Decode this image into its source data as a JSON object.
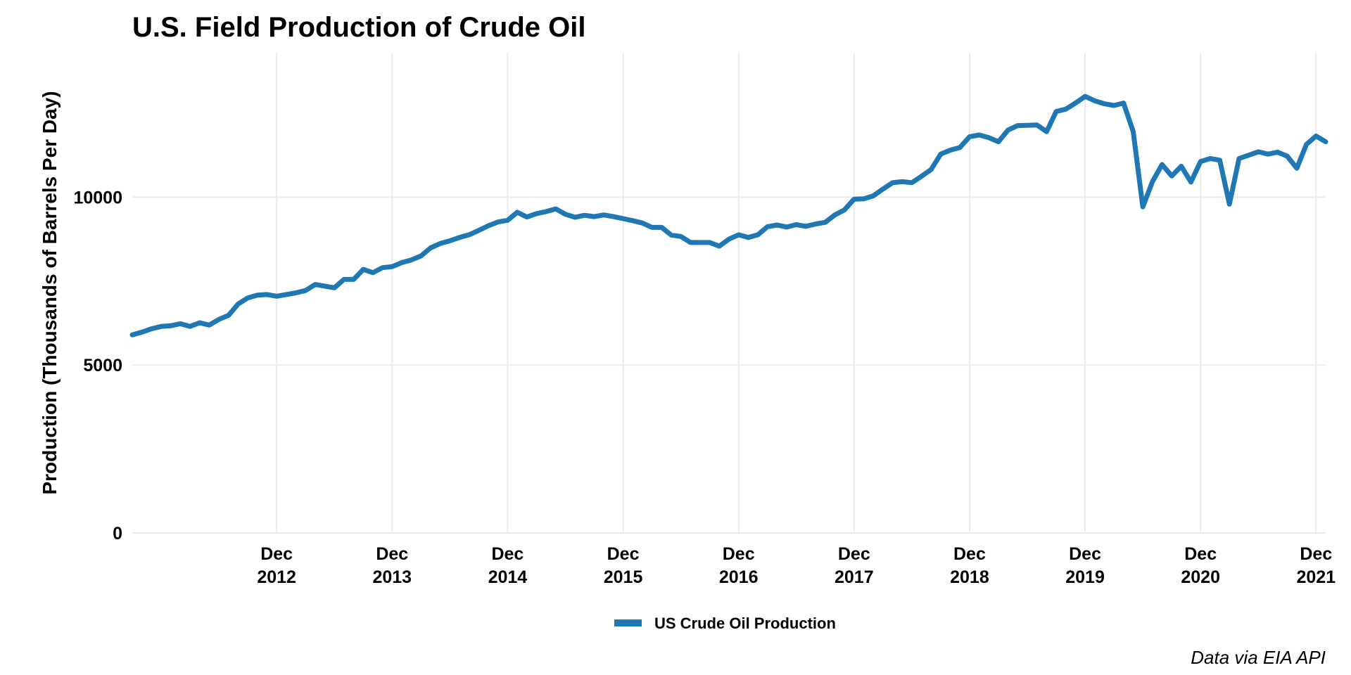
{
  "chart_data": {
    "type": "line",
    "title": "U.S. Field Production of Crude Oil",
    "xlabel": "",
    "ylabel": "Production (Thousands of Barrels Per Day)",
    "caption": "Data via EIA API",
    "ylim": [
      0,
      14300
    ],
    "xlim": [
      "2011-09",
      "2022-01"
    ],
    "yticks": [
      0,
      5000,
      10000
    ],
    "ytick_labels": [
      "0",
      "5000",
      "10000"
    ],
    "xticks": [
      {
        "date": "2012-12",
        "month_label": "Dec",
        "year_label": "2012"
      },
      {
        "date": "2013-12",
        "month_label": "Dec",
        "year_label": "2013"
      },
      {
        "date": "2014-12",
        "month_label": "Dec",
        "year_label": "2014"
      },
      {
        "date": "2015-12",
        "month_label": "Dec",
        "year_label": "2015"
      },
      {
        "date": "2016-12",
        "month_label": "Dec",
        "year_label": "2016"
      },
      {
        "date": "2017-12",
        "month_label": "Dec",
        "year_label": "2017"
      },
      {
        "date": "2018-12",
        "month_label": "Dec",
        "year_label": "2018"
      },
      {
        "date": "2019-12",
        "month_label": "Dec",
        "year_label": "2019"
      },
      {
        "date": "2020-12",
        "month_label": "Dec",
        "year_label": "2020"
      },
      {
        "date": "2021-12",
        "month_label": "Dec",
        "year_label": "2021"
      }
    ],
    "grid": true,
    "legend_position": "bottom",
    "series": [
      {
        "name": "US Crude Oil Production",
        "color": "#1f77b4",
        "x": [
          "2011-09",
          "2011-10",
          "2011-11",
          "2011-12",
          "2012-01",
          "2012-02",
          "2012-03",
          "2012-04",
          "2012-05",
          "2012-06",
          "2012-07",
          "2012-08",
          "2012-09",
          "2012-10",
          "2012-11",
          "2012-12",
          "2013-01",
          "2013-02",
          "2013-03",
          "2013-04",
          "2013-05",
          "2013-06",
          "2013-07",
          "2013-08",
          "2013-09",
          "2013-10",
          "2013-11",
          "2013-12",
          "2014-01",
          "2014-02",
          "2014-03",
          "2014-04",
          "2014-05",
          "2014-06",
          "2014-07",
          "2014-08",
          "2014-09",
          "2014-10",
          "2014-11",
          "2014-12",
          "2015-01",
          "2015-02",
          "2015-03",
          "2015-04",
          "2015-05",
          "2015-06",
          "2015-07",
          "2015-08",
          "2015-09",
          "2015-10",
          "2015-11",
          "2015-12",
          "2016-01",
          "2016-02",
          "2016-03",
          "2016-04",
          "2016-05",
          "2016-06",
          "2016-07",
          "2016-08",
          "2016-09",
          "2016-10",
          "2016-11",
          "2016-12",
          "2017-01",
          "2017-02",
          "2017-03",
          "2017-04",
          "2017-05",
          "2017-06",
          "2017-07",
          "2017-08",
          "2017-09",
          "2017-10",
          "2017-11",
          "2017-12",
          "2018-01",
          "2018-02",
          "2018-03",
          "2018-04",
          "2018-05",
          "2018-06",
          "2018-07",
          "2018-08",
          "2018-09",
          "2018-10",
          "2018-11",
          "2018-12",
          "2019-01",
          "2019-02",
          "2019-03",
          "2019-04",
          "2019-05",
          "2019-06",
          "2019-07",
          "2019-08",
          "2019-09",
          "2019-10",
          "2019-11",
          "2019-12",
          "2020-01",
          "2020-02",
          "2020-03",
          "2020-04",
          "2020-05",
          "2020-06",
          "2020-07",
          "2020-08",
          "2020-09",
          "2020-10",
          "2020-11",
          "2020-12",
          "2021-01",
          "2021-02",
          "2021-03",
          "2021-04",
          "2021-05",
          "2021-06",
          "2021-07",
          "2021-08",
          "2021-09",
          "2021-10",
          "2021-11",
          "2021-12",
          "2022-01"
        ],
        "y": [
          5900,
          5980,
          6080,
          6150,
          6170,
          6230,
          6150,
          6260,
          6190,
          6360,
          6480,
          6820,
          7000,
          7080,
          7100,
          7050,
          7100,
          7150,
          7220,
          7400,
          7350,
          7300,
          7550,
          7550,
          7850,
          7750,
          7900,
          7930,
          8050,
          8130,
          8250,
          8490,
          8620,
          8700,
          8800,
          8880,
          9010,
          9150,
          9260,
          9310,
          9550,
          9410,
          9510,
          9570,
          9650,
          9490,
          9400,
          9460,
          9420,
          9470,
          9420,
          9360,
          9300,
          9230,
          9100,
          9100,
          8870,
          8830,
          8650,
          8650,
          8650,
          8540,
          8750,
          8880,
          8800,
          8880,
          9120,
          9170,
          9110,
          9180,
          9130,
          9200,
          9250,
          9470,
          9620,
          9940,
          9950,
          10040,
          10240,
          10430,
          10460,
          10430,
          10620,
          10820,
          11280,
          11400,
          11480,
          11800,
          11850,
          11770,
          11650,
          12000,
          12130,
          12140,
          12150,
          11950,
          12550,
          12620,
          12800,
          13000,
          12870,
          12780,
          12730,
          12800,
          11950,
          9710,
          10460,
          10970,
          10630,
          10920,
          10450,
          11060,
          11150,
          11100,
          9790,
          11150,
          11250,
          11350,
          11280,
          11340,
          11220,
          10860,
          11570,
          11820,
          11650
        ]
      }
    ]
  }
}
